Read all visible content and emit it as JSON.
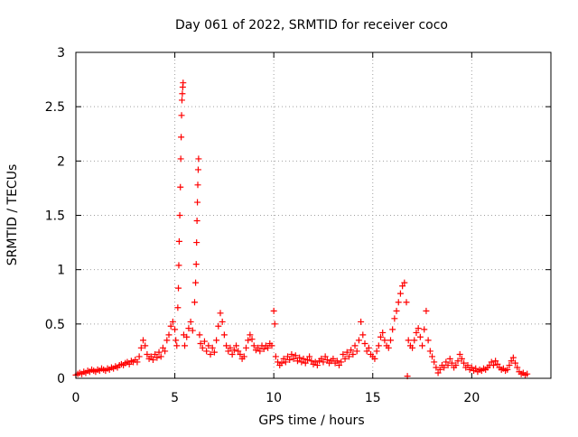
{
  "chart_data": {
    "type": "scatter",
    "title": "Day 061 of 2022, SRMTID for receiver coco",
    "xlabel": "GPS time / hours",
    "ylabel": "SRMTID / TECUs",
    "xlim": [
      0,
      24
    ],
    "ylim": [
      0,
      3
    ],
    "xticks": [
      0,
      5,
      10,
      15,
      20
    ],
    "yticks": [
      0,
      0.5,
      1,
      1.5,
      2,
      2.5,
      3
    ],
    "xtick_labels": [
      "0",
      "5",
      "10",
      "15",
      "20"
    ],
    "ytick_labels": [
      "0",
      "0.5",
      "1",
      "1.5",
      "2",
      "2.5",
      "3"
    ],
    "grid": true,
    "marker": "+",
    "series": [
      {
        "name": "SRMTID",
        "color": "#ff0000",
        "points": [
          [
            0.0,
            0.03
          ],
          [
            0.1,
            0.04
          ],
          [
            0.2,
            0.05
          ],
          [
            0.3,
            0.04
          ],
          [
            0.4,
            0.06
          ],
          [
            0.5,
            0.05
          ],
          [
            0.6,
            0.07
          ],
          [
            0.7,
            0.06
          ],
          [
            0.8,
            0.08
          ],
          [
            0.9,
            0.07
          ],
          [
            1.0,
            0.06
          ],
          [
            1.1,
            0.08
          ],
          [
            1.2,
            0.07
          ],
          [
            1.3,
            0.09
          ],
          [
            1.4,
            0.08
          ],
          [
            1.5,
            0.07
          ],
          [
            1.6,
            0.09
          ],
          [
            1.7,
            0.08
          ],
          [
            1.8,
            0.1
          ],
          [
            1.9,
            0.09
          ],
          [
            2.0,
            0.11
          ],
          [
            2.1,
            0.1
          ],
          [
            2.2,
            0.12
          ],
          [
            2.3,
            0.13
          ],
          [
            2.4,
            0.12
          ],
          [
            2.5,
            0.14
          ],
          [
            2.6,
            0.15
          ],
          [
            2.7,
            0.13
          ],
          [
            2.8,
            0.16
          ],
          [
            2.9,
            0.15
          ],
          [
            3.0,
            0.17
          ],
          [
            3.1,
            0.15
          ],
          [
            3.2,
            0.2
          ],
          [
            3.3,
            0.28
          ],
          [
            3.4,
            0.35
          ],
          [
            3.5,
            0.3
          ],
          [
            3.6,
            0.22
          ],
          [
            3.7,
            0.18
          ],
          [
            3.8,
            0.2
          ],
          [
            3.9,
            0.17
          ],
          [
            4.0,
            0.22
          ],
          [
            4.1,
            0.19
          ],
          [
            4.2,
            0.24
          ],
          [
            4.3,
            0.2
          ],
          [
            4.4,
            0.28
          ],
          [
            4.5,
            0.25
          ],
          [
            4.6,
            0.35
          ],
          [
            4.7,
            0.4
          ],
          [
            4.8,
            0.48
          ],
          [
            4.9,
            0.52
          ],
          [
            5.0,
            0.45
          ],
          [
            5.05,
            0.35
          ],
          [
            5.1,
            0.3
          ],
          [
            5.15,
            0.65
          ],
          [
            5.18,
            0.83
          ],
          [
            5.2,
            1.04
          ],
          [
            5.22,
            1.26
          ],
          [
            5.25,
            1.5
          ],
          [
            5.28,
            1.76
          ],
          [
            5.3,
            2.02
          ],
          [
            5.32,
            2.22
          ],
          [
            5.34,
            2.42
          ],
          [
            5.36,
            2.56
          ],
          [
            5.38,
            2.62
          ],
          [
            5.4,
            2.68
          ],
          [
            5.42,
            2.72
          ],
          [
            5.45,
            0.4
          ],
          [
            5.5,
            0.3
          ],
          [
            5.6,
            0.38
          ],
          [
            5.7,
            0.46
          ],
          [
            5.8,
            0.52
          ],
          [
            5.9,
            0.44
          ],
          [
            6.0,
            0.7
          ],
          [
            6.05,
            0.88
          ],
          [
            6.08,
            1.05
          ],
          [
            6.1,
            1.25
          ],
          [
            6.12,
            1.45
          ],
          [
            6.14,
            1.62
          ],
          [
            6.16,
            1.78
          ],
          [
            6.18,
            1.92
          ],
          [
            6.2,
            2.02
          ],
          [
            6.25,
            0.4
          ],
          [
            6.3,
            0.32
          ],
          [
            6.4,
            0.28
          ],
          [
            6.5,
            0.34
          ],
          [
            6.6,
            0.25
          ],
          [
            6.7,
            0.3
          ],
          [
            6.8,
            0.22
          ],
          [
            6.9,
            0.28
          ],
          [
            7.0,
            0.24
          ],
          [
            7.1,
            0.35
          ],
          [
            7.2,
            0.48
          ],
          [
            7.3,
            0.6
          ],
          [
            7.4,
            0.52
          ],
          [
            7.5,
            0.4
          ],
          [
            7.6,
            0.3
          ],
          [
            7.7,
            0.25
          ],
          [
            7.8,
            0.28
          ],
          [
            7.9,
            0.22
          ],
          [
            8.0,
            0.26
          ],
          [
            8.1,
            0.3
          ],
          [
            8.2,
            0.25
          ],
          [
            8.3,
            0.22
          ],
          [
            8.4,
            0.18
          ],
          [
            8.5,
            0.2
          ],
          [
            8.6,
            0.28
          ],
          [
            8.7,
            0.35
          ],
          [
            8.8,
            0.4
          ],
          [
            8.9,
            0.36
          ],
          [
            9.0,
            0.3
          ],
          [
            9.1,
            0.26
          ],
          [
            9.2,
            0.28
          ],
          [
            9.3,
            0.25
          ],
          [
            9.4,
            0.3
          ],
          [
            9.5,
            0.27
          ],
          [
            9.6,
            0.3
          ],
          [
            9.7,
            0.28
          ],
          [
            9.8,
            0.32
          ],
          [
            9.9,
            0.3
          ],
          [
            10.0,
            0.62
          ],
          [
            10.05,
            0.5
          ],
          [
            10.1,
            0.2
          ],
          [
            10.2,
            0.15
          ],
          [
            10.3,
            0.12
          ],
          [
            10.4,
            0.14
          ],
          [
            10.5,
            0.18
          ],
          [
            10.6,
            0.15
          ],
          [
            10.7,
            0.2
          ],
          [
            10.8,
            0.17
          ],
          [
            10.9,
            0.22
          ],
          [
            11.0,
            0.18
          ],
          [
            11.1,
            0.21
          ],
          [
            11.2,
            0.16
          ],
          [
            11.3,
            0.19
          ],
          [
            11.4,
            0.15
          ],
          [
            11.5,
            0.18
          ],
          [
            11.6,
            0.14
          ],
          [
            11.7,
            0.17
          ],
          [
            11.8,
            0.2
          ],
          [
            11.9,
            0.16
          ],
          [
            12.0,
            0.13
          ],
          [
            12.1,
            0.15
          ],
          [
            12.2,
            0.12
          ],
          [
            12.3,
            0.16
          ],
          [
            12.4,
            0.18
          ],
          [
            12.5,
            0.15
          ],
          [
            12.6,
            0.2
          ],
          [
            12.7,
            0.17
          ],
          [
            12.8,
            0.14
          ],
          [
            12.9,
            0.16
          ],
          [
            13.0,
            0.18
          ],
          [
            13.1,
            0.14
          ],
          [
            13.2,
            0.16
          ],
          [
            13.3,
            0.12
          ],
          [
            13.4,
            0.15
          ],
          [
            13.5,
            0.22
          ],
          [
            13.6,
            0.18
          ],
          [
            13.7,
            0.24
          ],
          [
            13.8,
            0.2
          ],
          [
            13.9,
            0.26
          ],
          [
            14.0,
            0.22
          ],
          [
            14.1,
            0.3
          ],
          [
            14.2,
            0.25
          ],
          [
            14.3,
            0.35
          ],
          [
            14.4,
            0.52
          ],
          [
            14.5,
            0.4
          ],
          [
            14.6,
            0.32
          ],
          [
            14.7,
            0.25
          ],
          [
            14.8,
            0.28
          ],
          [
            14.9,
            0.22
          ],
          [
            15.0,
            0.2
          ],
          [
            15.1,
            0.18
          ],
          [
            15.2,
            0.25
          ],
          [
            15.3,
            0.3
          ],
          [
            15.4,
            0.38
          ],
          [
            15.5,
            0.42
          ],
          [
            15.6,
            0.35
          ],
          [
            15.7,
            0.3
          ],
          [
            15.8,
            0.28
          ],
          [
            15.9,
            0.35
          ],
          [
            16.0,
            0.45
          ],
          [
            16.1,
            0.55
          ],
          [
            16.2,
            0.62
          ],
          [
            16.3,
            0.7
          ],
          [
            16.4,
            0.78
          ],
          [
            16.5,
            0.85
          ],
          [
            16.6,
            0.88
          ],
          [
            16.7,
            0.7
          ],
          [
            16.75,
            0.02
          ],
          [
            16.8,
            0.35
          ],
          [
            16.9,
            0.3
          ],
          [
            17.0,
            0.28
          ],
          [
            17.1,
            0.35
          ],
          [
            17.2,
            0.42
          ],
          [
            17.3,
            0.46
          ],
          [
            17.4,
            0.38
          ],
          [
            17.5,
            0.3
          ],
          [
            17.6,
            0.45
          ],
          [
            17.7,
            0.62
          ],
          [
            17.8,
            0.35
          ],
          [
            17.9,
            0.25
          ],
          [
            18.0,
            0.2
          ],
          [
            18.1,
            0.15
          ],
          [
            18.2,
            0.1
          ],
          [
            18.3,
            0.05
          ],
          [
            18.4,
            0.08
          ],
          [
            18.5,
            0.12
          ],
          [
            18.6,
            0.1
          ],
          [
            18.7,
            0.15
          ],
          [
            18.8,
            0.12
          ],
          [
            18.9,
            0.18
          ],
          [
            19.0,
            0.14
          ],
          [
            19.1,
            0.1
          ],
          [
            19.2,
            0.12
          ],
          [
            19.3,
            0.16
          ],
          [
            19.4,
            0.22
          ],
          [
            19.5,
            0.18
          ],
          [
            19.6,
            0.14
          ],
          [
            19.7,
            0.1
          ],
          [
            19.8,
            0.12
          ],
          [
            19.9,
            0.08
          ],
          [
            20.0,
            0.1
          ],
          [
            20.1,
            0.07
          ],
          [
            20.2,
            0.09
          ],
          [
            20.3,
            0.06
          ],
          [
            20.4,
            0.08
          ],
          [
            20.5,
            0.07
          ],
          [
            20.6,
            0.09
          ],
          [
            20.7,
            0.08
          ],
          [
            20.8,
            0.1
          ],
          [
            20.9,
            0.12
          ],
          [
            21.0,
            0.15
          ],
          [
            21.1,
            0.12
          ],
          [
            21.2,
            0.16
          ],
          [
            21.3,
            0.13
          ],
          [
            21.4,
            0.1
          ],
          [
            21.5,
            0.08
          ],
          [
            21.6,
            0.09
          ],
          [
            21.7,
            0.07
          ],
          [
            21.8,
            0.08
          ],
          [
            21.9,
            0.12
          ],
          [
            22.0,
            0.16
          ],
          [
            22.1,
            0.19
          ],
          [
            22.2,
            0.14
          ],
          [
            22.3,
            0.1
          ],
          [
            22.4,
            0.06
          ],
          [
            22.5,
            0.04
          ],
          [
            22.6,
            0.05
          ],
          [
            22.7,
            0.03
          ],
          [
            22.8,
            0.04
          ]
        ]
      }
    ]
  }
}
